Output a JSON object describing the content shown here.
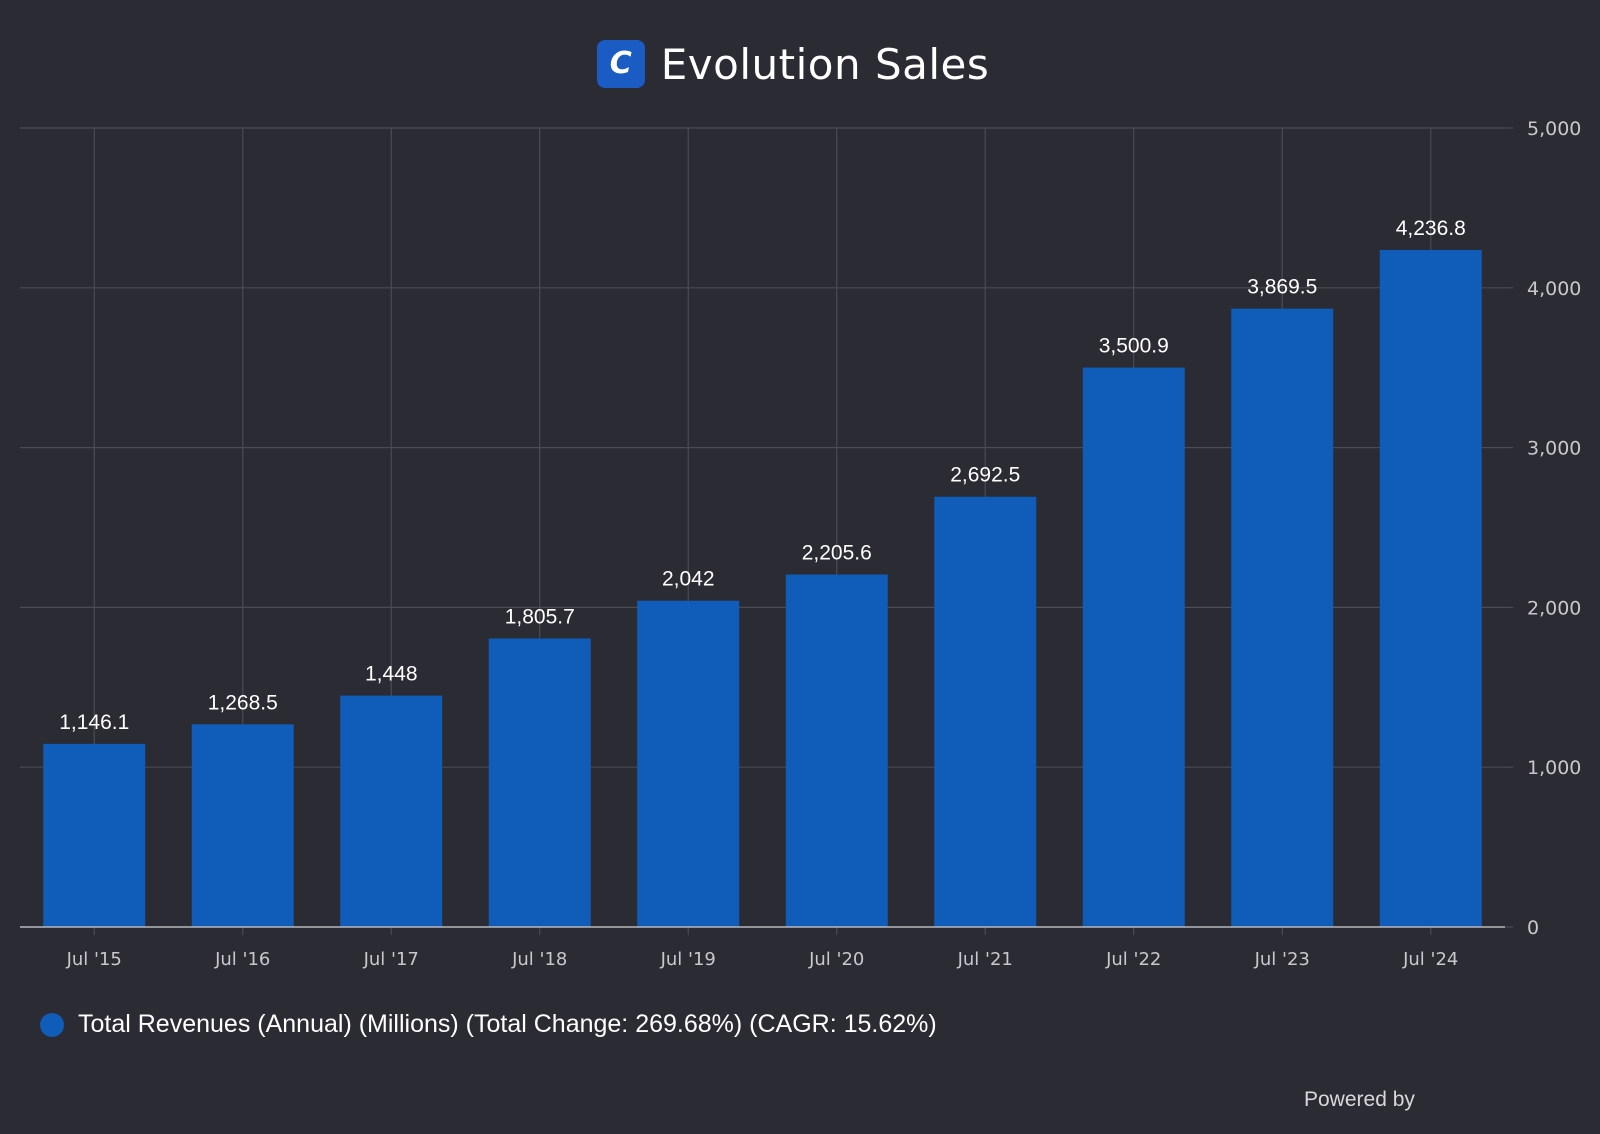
{
  "header": {
    "logo_letter": "C",
    "title": "Evolution Sales"
  },
  "colors": {
    "background": "#2a2b33",
    "bar": "#0f5cb9",
    "grid": "#4a4b55",
    "axis_text": "#c8c8cc",
    "label_text": "#ffffff"
  },
  "chart_data": {
    "type": "bar",
    "categories": [
      "Jul '15",
      "Jul '16",
      "Jul '17",
      "Jul '18",
      "Jul '19",
      "Jul '20",
      "Jul '21",
      "Jul '22",
      "Jul '23",
      "Jul '24"
    ],
    "series": [
      {
        "name": "Total Revenues (Annual) (Millions) (Total Change: 269.68%) (CAGR: 15.62%)",
        "values": [
          1146.1,
          1268.5,
          1448,
          1805.7,
          2042,
          2205.6,
          2692.5,
          3500.9,
          3869.5,
          4236.8
        ],
        "labels": [
          "1,146.1",
          "1,268.5",
          "1,448",
          "1,805.7",
          "2,042",
          "2,205.6",
          "2,692.5",
          "3,500.9",
          "3,869.5",
          "4,236.8"
        ]
      }
    ],
    "ylim": [
      0,
      5000
    ],
    "yticks": [
      0,
      1000,
      2000,
      3000,
      4000,
      5000
    ],
    "ytick_labels": [
      "0",
      "1,000",
      "2,000",
      "3,000",
      "4,000",
      "5,000"
    ],
    "y_axis_side": "right",
    "grid": true,
    "legend_position": "bottom-left"
  },
  "legend": {
    "label": "Total Revenues (Annual) (Millions) (Total Change: 269.68%) (CAGR: 15.62%)"
  },
  "footer": {
    "powered_by": "Powered by"
  }
}
